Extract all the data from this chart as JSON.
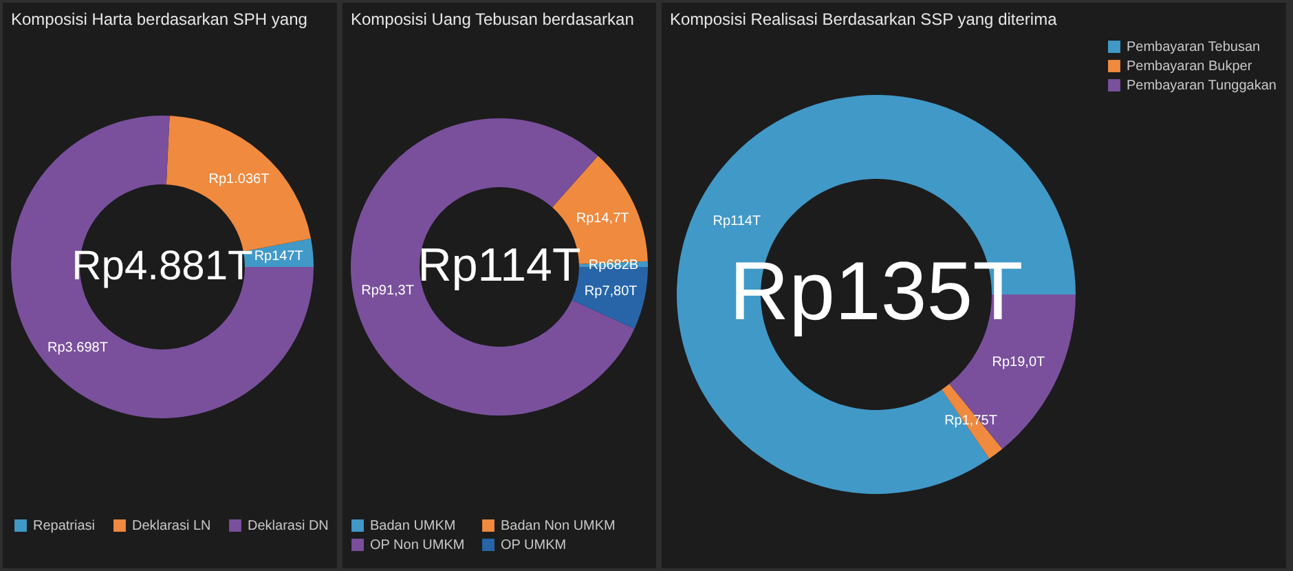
{
  "chart_data": [
    {
      "type": "donut",
      "title": "Komposisi Harta berdasarkan SPH yang",
      "categories": [
        "Repatriasi",
        "Deklarasi LN",
        "Deklarasi DN"
      ],
      "values": [
        3.01,
        21.22,
        75.77
      ],
      "value_labels": [
        "Rp147T",
        "Rp1.036T",
        "Rp3.698T"
      ],
      "colors": [
        "#4199c8",
        "#ef8a3f",
        "#7a509d"
      ],
      "annotations": [
        "Rp4.881T"
      ],
      "legend": "bottom"
    },
    {
      "type": "donut",
      "title": "Komposisi Uang Tebusan berdasarkan",
      "categories": [
        "Badan UMKM",
        "Badan Non UMKM",
        "OP Non UMKM",
        "OP UMKM"
      ],
      "values": [
        0.6,
        12.84,
        79.75,
        6.81
      ],
      "value_labels": [
        "Rp682B",
        "Rp14,7T",
        "Rp91,3T",
        "Rp7,80T"
      ],
      "colors": [
        "#4199c8",
        "#ef8a3f",
        "#7a509d",
        "#2765a8"
      ],
      "annotations": [
        "Rp114T"
      ],
      "legend": "bottom"
    },
    {
      "type": "donut",
      "title": "Komposisi Realisasi Berdasarkan SSP yang diterima",
      "categories": [
        "Pembayaran Tebusan",
        "Pembayaran Bukper",
        "Pembayaran Tunggakan"
      ],
      "values": [
        84.6,
        1.3,
        14.1
      ],
      "value_labels": [
        "Rp114T",
        "Rp1,75T",
        "Rp19,0T"
      ],
      "colors": [
        "#4199c8",
        "#ef8a3f",
        "#7a509d"
      ],
      "annotations": [
        "Rp135T"
      ],
      "legend": "right"
    }
  ]
}
